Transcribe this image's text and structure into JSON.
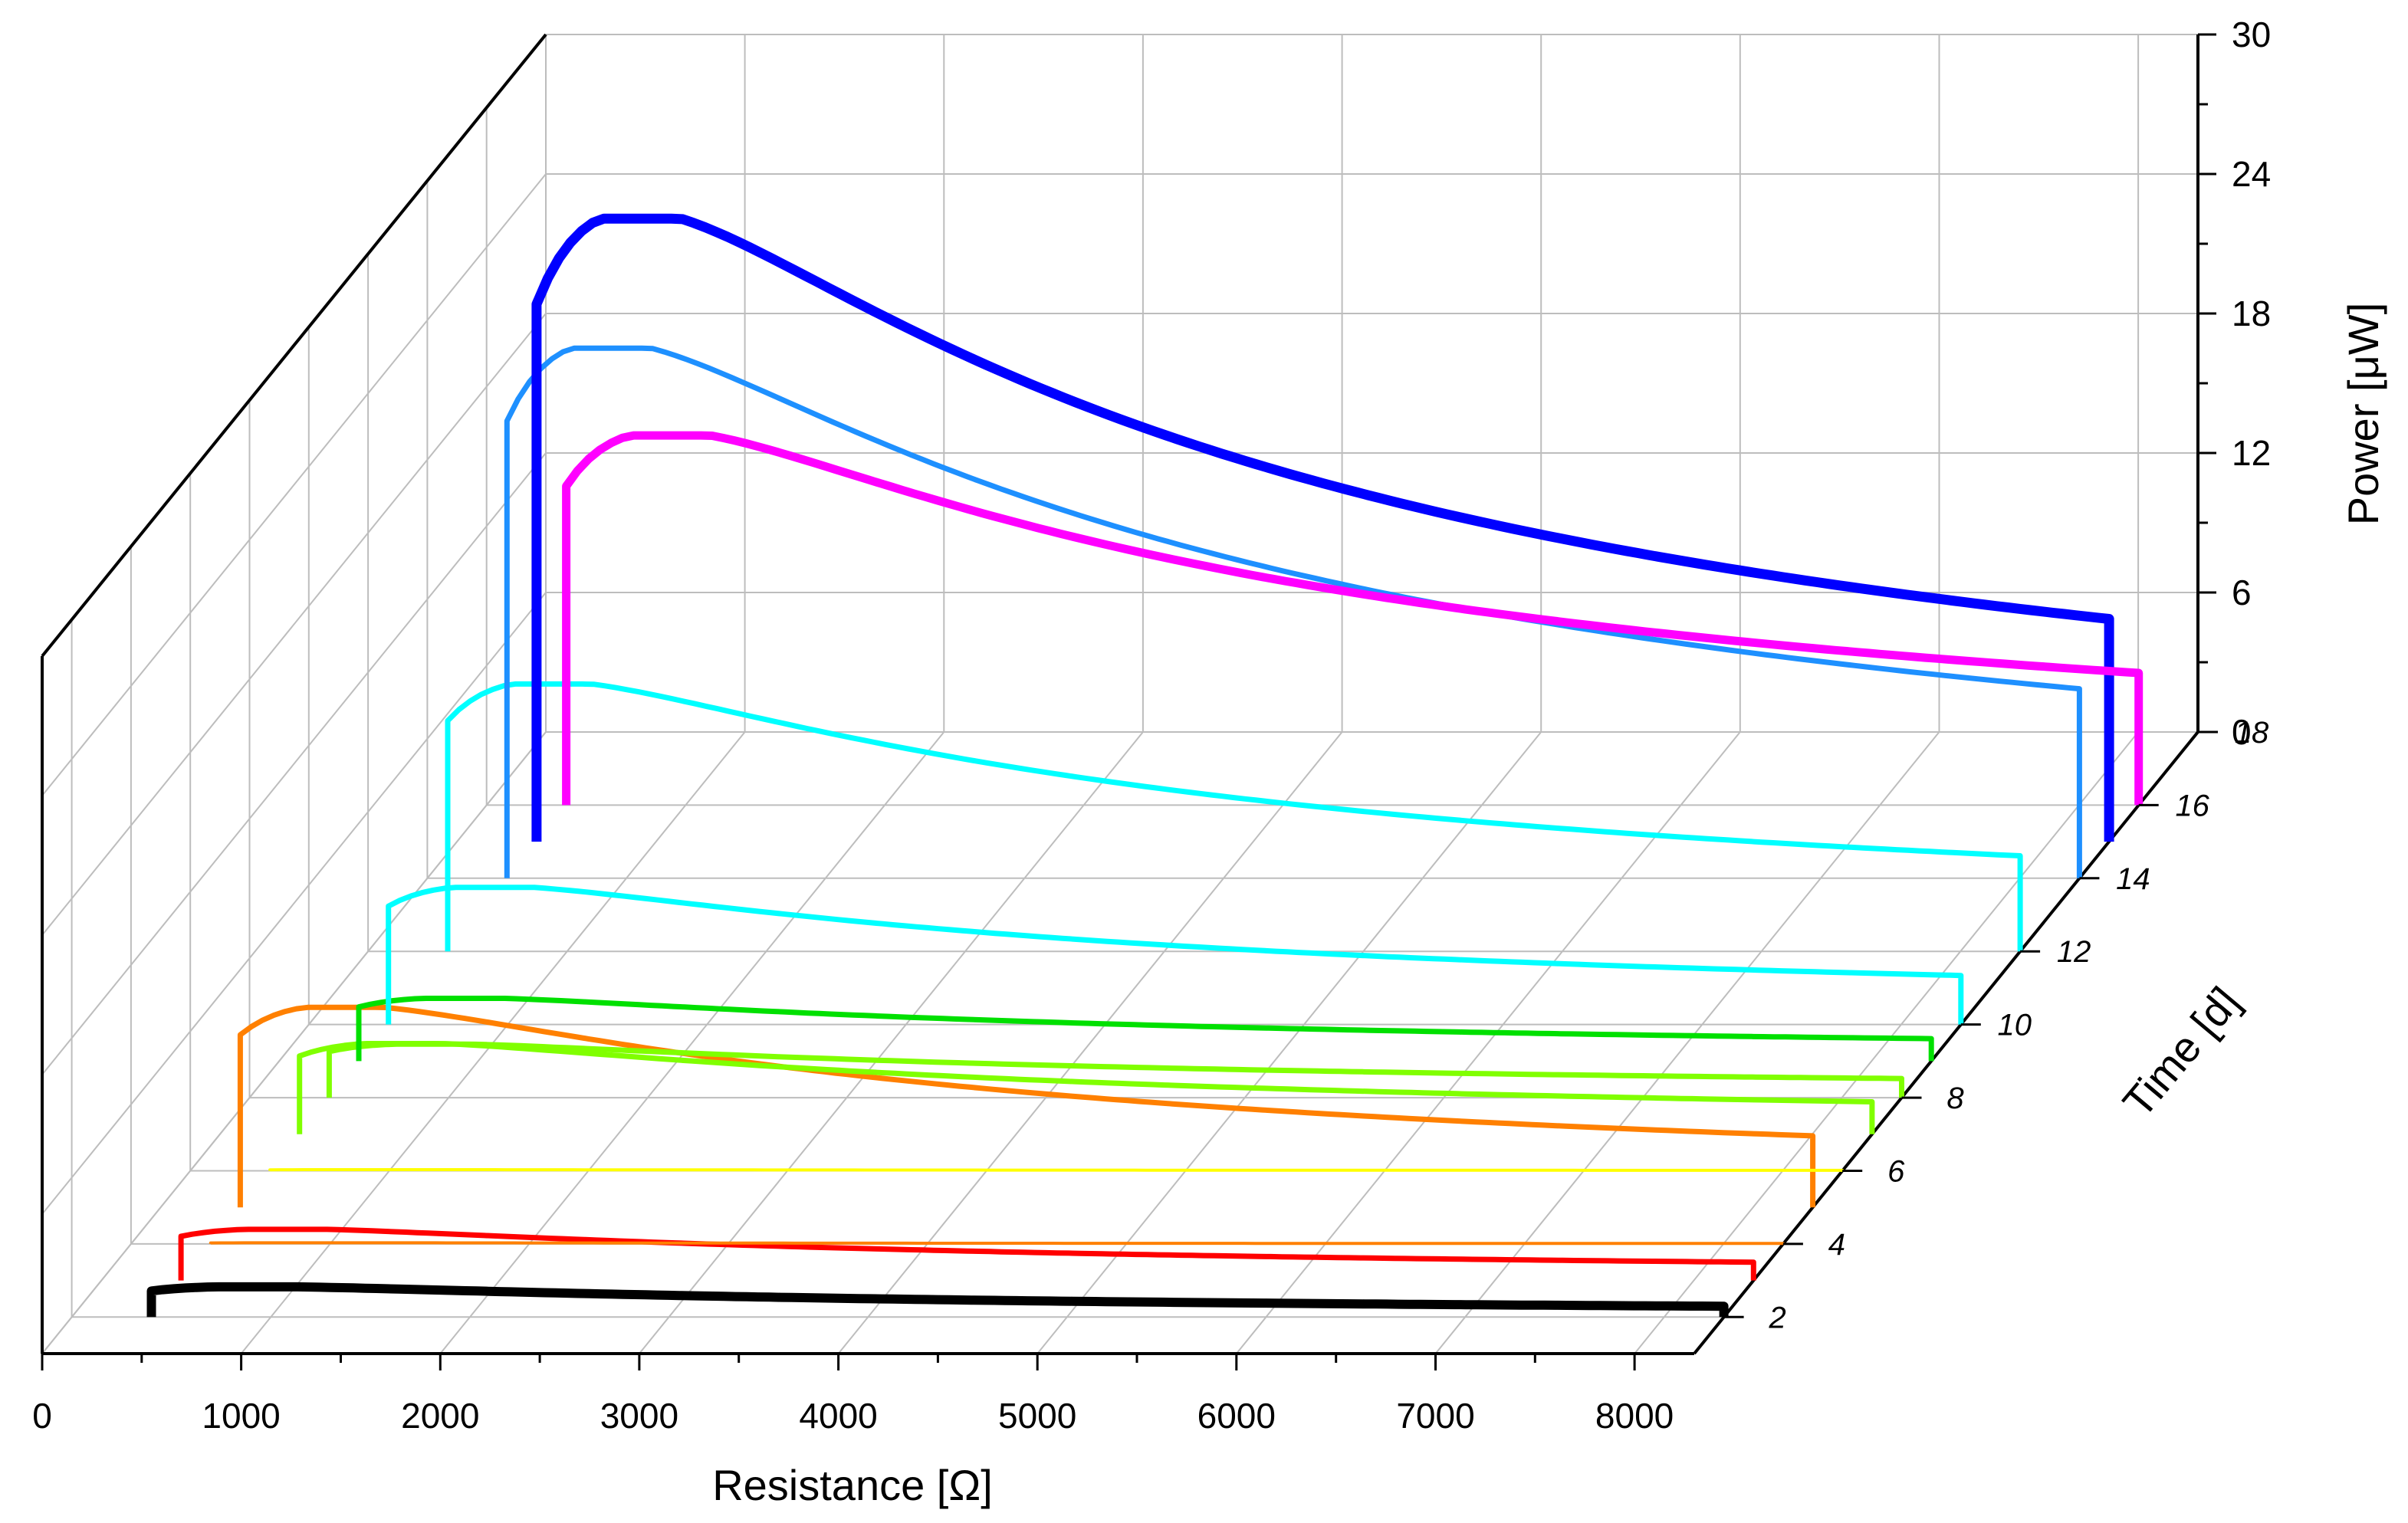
{
  "chart_data": {
    "type": "line",
    "x_axis": {
      "label": "Resistance [Ω]",
      "range": [
        0,
        8300
      ],
      "ticks": [
        0,
        1000,
        2000,
        3000,
        4000,
        5000,
        6000,
        7000,
        8000
      ]
    },
    "y_axis": {
      "label": "Time [d]",
      "range": [
        1,
        18
      ],
      "ticks": [
        2,
        4,
        6,
        8,
        10,
        12,
        14,
        16,
        18
      ]
    },
    "z_axis": {
      "label": "Power [μW]",
      "range": [
        0,
        30
      ],
      "ticks": [
        0,
        6,
        12,
        18,
        24,
        30
      ]
    },
    "grid": true,
    "series": [
      {
        "time": 2,
        "color": "#000000",
        "width": 12,
        "x_start": 400,
        "x_end": 8300,
        "peak_power": 1.3
      },
      {
        "time": 3,
        "color": "#ff0000",
        "width": 7,
        "x_start": 400,
        "x_end": 8300,
        "peak_power": 2.2
      },
      {
        "time": 4,
        "color": "#ff8000",
        "width": 4,
        "x_start": 400,
        "x_end": 8300,
        "peak_power": 0.05
      },
      {
        "time": 5,
        "color": "#ff8000",
        "width": 7,
        "x_start": 400,
        "x_end": 8300,
        "peak_power": 8.6
      },
      {
        "time": 6,
        "color": "#ffff00",
        "width": 4,
        "x_start": 400,
        "x_end": 8300,
        "peak_power": 0.05
      },
      {
        "time": 7,
        "color": "#80ff00",
        "width": 7,
        "x_start": 400,
        "x_end": 8300,
        "peak_power": 3.9
      },
      {
        "time": 8,
        "color": "#80ff00",
        "width": 7,
        "x_start": 400,
        "x_end": 8300,
        "peak_power": 2.3
      },
      {
        "time": 9,
        "color": "#00e000",
        "width": 7,
        "x_start": 400,
        "x_end": 8300,
        "peak_power": 2.7
      },
      {
        "time": 10,
        "color": "#00ffff",
        "width": 7,
        "x_start": 400,
        "x_end": 8300,
        "peak_power": 5.9
      },
      {
        "time": 12,
        "color": "#00ffff",
        "width": 7,
        "x_start": 400,
        "x_end": 8300,
        "peak_power": 11.5
      },
      {
        "time": 14,
        "color": "#1e90ff",
        "width": 7,
        "x_start": 400,
        "x_end": 8300,
        "peak_power": 22.8
      },
      {
        "time": 15,
        "color": "#0000ff",
        "width": 13,
        "x_start": 400,
        "x_end": 8300,
        "peak_power": 26.8
      },
      {
        "time": 16,
        "color": "#ff00ff",
        "width": 11,
        "x_start": 400,
        "x_end": 8300,
        "peak_power": 15.9
      }
    ]
  }
}
